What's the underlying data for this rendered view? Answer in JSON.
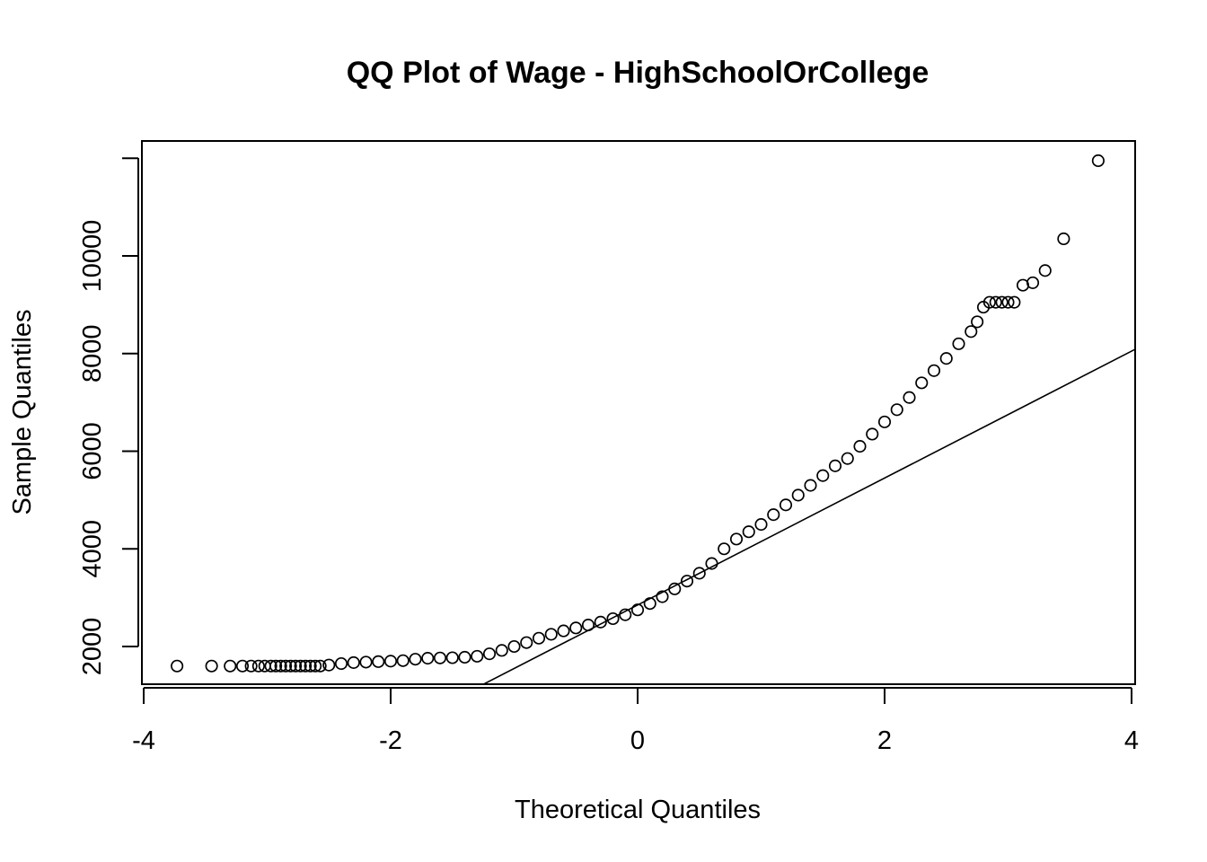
{
  "chart_data": {
    "type": "scatter",
    "title": "QQ Plot of Wage - HighSchoolOrCollege",
    "xlabel": "Theoretical Quantiles",
    "ylabel": "Sample Quantiles",
    "xlim": [
      -3.9,
      4.1
    ],
    "ylim": [
      1200,
      12300
    ],
    "xticks": [
      -4,
      -2,
      0,
      2,
      4
    ],
    "xtick_labels": [
      "-4",
      "-2",
      "0",
      "2",
      "4"
    ],
    "yticks": [
      2000,
      4000,
      6000,
      8000,
      10000
    ],
    "ytick_labels": [
      "2000",
      "4000",
      "6000",
      "8000",
      "10000"
    ],
    "grid": false,
    "marker": "open-circle",
    "colors": {
      "points": "#000000",
      "line": "#000000",
      "frame": "#000000"
    },
    "reference_line": {
      "intercept": 2850,
      "slope": 1300
    },
    "series": [
      {
        "points": [
          [
            -3.73,
            1600
          ],
          [
            -3.45,
            1600
          ],
          [
            -3.3,
            1600
          ],
          [
            -3.2,
            1600
          ],
          [
            -3.13,
            1600
          ],
          [
            -3.07,
            1600
          ],
          [
            -3.02,
            1600
          ],
          [
            -2.97,
            1600
          ],
          [
            -2.93,
            1600
          ],
          [
            -2.89,
            1600
          ],
          [
            -2.85,
            1600
          ],
          [
            -2.81,
            1600
          ],
          [
            -2.77,
            1600
          ],
          [
            -2.73,
            1600
          ],
          [
            -2.69,
            1600
          ],
          [
            -2.65,
            1600
          ],
          [
            -2.61,
            1600
          ],
          [
            -2.57,
            1600
          ],
          [
            -2.5,
            1620
          ],
          [
            -2.4,
            1650
          ],
          [
            -2.3,
            1670
          ],
          [
            -2.2,
            1680
          ],
          [
            -2.1,
            1690
          ],
          [
            -2.0,
            1700
          ],
          [
            -1.9,
            1710
          ],
          [
            -1.8,
            1740
          ],
          [
            -1.7,
            1760
          ],
          [
            -1.6,
            1765
          ],
          [
            -1.5,
            1770
          ],
          [
            -1.4,
            1780
          ],
          [
            -1.3,
            1800
          ],
          [
            -1.2,
            1850
          ],
          [
            -1.1,
            1920
          ],
          [
            -1.0,
            2000
          ],
          [
            -0.9,
            2080
          ],
          [
            -0.8,
            2170
          ],
          [
            -0.7,
            2250
          ],
          [
            -0.6,
            2320
          ],
          [
            -0.5,
            2380
          ],
          [
            -0.4,
            2440
          ],
          [
            -0.3,
            2500
          ],
          [
            -0.2,
            2570
          ],
          [
            -0.1,
            2650
          ],
          [
            0.0,
            2750
          ],
          [
            0.1,
            2880
          ],
          [
            0.2,
            3020
          ],
          [
            0.3,
            3180
          ],
          [
            0.4,
            3340
          ],
          [
            0.5,
            3500
          ],
          [
            0.6,
            3700
          ],
          [
            0.7,
            4000
          ],
          [
            0.8,
            4200
          ],
          [
            0.9,
            4350
          ],
          [
            1.0,
            4500
          ],
          [
            1.1,
            4700
          ],
          [
            1.2,
            4900
          ],
          [
            1.3,
            5100
          ],
          [
            1.4,
            5300
          ],
          [
            1.5,
            5500
          ],
          [
            1.6,
            5700
          ],
          [
            1.7,
            5850
          ],
          [
            1.8,
            6100
          ],
          [
            1.9,
            6350
          ],
          [
            2.0,
            6600
          ],
          [
            2.1,
            6850
          ],
          [
            2.2,
            7100
          ],
          [
            2.3,
            7400
          ],
          [
            2.4,
            7650
          ],
          [
            2.5,
            7900
          ],
          [
            2.6,
            8200
          ],
          [
            2.7,
            8450
          ],
          [
            2.75,
            8650
          ],
          [
            2.8,
            8950
          ],
          [
            2.85,
            9050
          ],
          [
            2.9,
            9050
          ],
          [
            2.95,
            9050
          ],
          [
            3.0,
            9050
          ],
          [
            3.05,
            9050
          ],
          [
            3.12,
            9400
          ],
          [
            3.2,
            9450
          ],
          [
            3.3,
            9700
          ],
          [
            3.45,
            10350
          ],
          [
            3.73,
            11950
          ]
        ]
      }
    ]
  }
}
